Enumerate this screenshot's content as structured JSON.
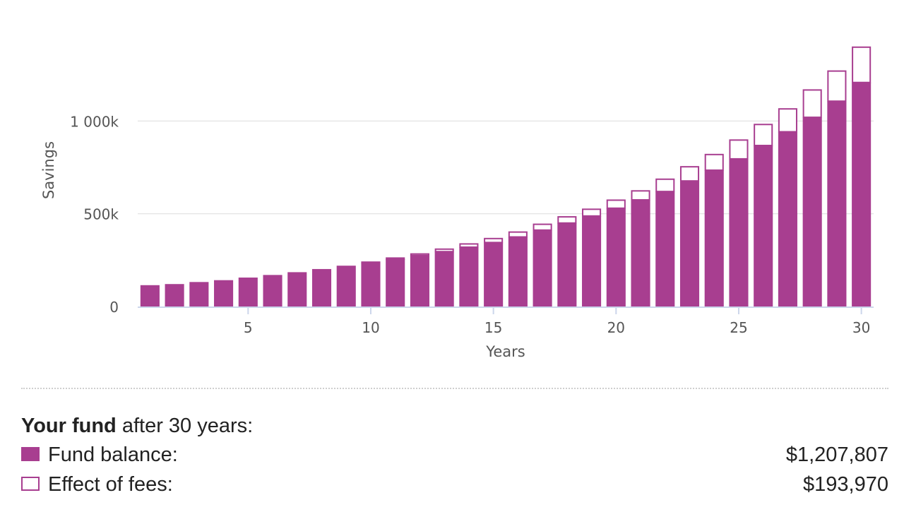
{
  "chart_data": {
    "type": "bar",
    "stacked": true,
    "x": [
      1,
      2,
      3,
      4,
      5,
      6,
      7,
      8,
      9,
      10,
      11,
      12,
      13,
      14,
      15,
      16,
      17,
      18,
      19,
      20,
      21,
      22,
      23,
      24,
      25,
      26,
      27,
      28,
      29,
      30
    ],
    "x_ticks": [
      "5",
      "10",
      "15",
      "20",
      "25",
      "30"
    ],
    "xlabel": "Years",
    "ylabel": "Savings",
    "y_ticks": [
      "0",
      "500k",
      "1 000k"
    ],
    "ylim": [
      0,
      1400000
    ],
    "grid": true,
    "series": [
      {
        "name": "Fund balance",
        "color": "#a83e90",
        "style": "filled",
        "values": [
          115000,
          121000,
          132000,
          142000,
          156000,
          170000,
          185000,
          202000,
          220000,
          235000,
          255000,
          275000,
          296000,
          320000,
          345000,
          375000,
          412000,
          450000,
          488000,
          530000,
          575000,
          620000,
          677000,
          735000,
          796000,
          868000,
          942000,
          1020000,
          1107000,
          1207807
        ]
      },
      {
        "name": "Effect of fees",
        "color": "#a83e90",
        "style": "outline",
        "values": [
          0,
          0,
          0,
          0,
          0,
          0,
          0,
          0,
          0,
          8000,
          10000,
          12000,
          17000,
          21000,
          25000,
          30000,
          35000,
          37000,
          40000,
          47000,
          52000,
          70000,
          80000,
          88000,
          105000,
          117000,
          127000,
          151000,
          166000,
          193970
        ]
      }
    ]
  },
  "summary": {
    "heading_strong": "Your fund",
    "heading_rest": " after 30 years:",
    "rows": [
      {
        "label": "Fund balance:",
        "value": "$1,207,807"
      },
      {
        "label": "Effect of fees:",
        "value": "$193,970"
      }
    ]
  }
}
